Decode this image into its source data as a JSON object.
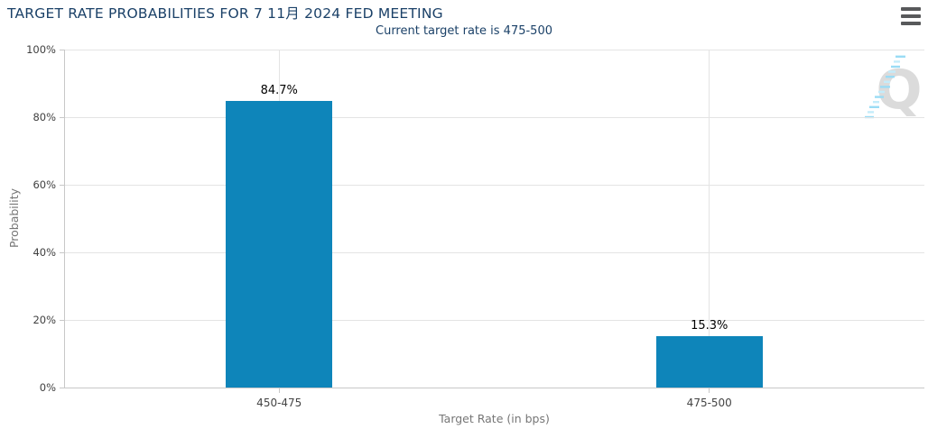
{
  "header": {
    "title": "TARGET RATE PROBABILITIES FOR 7 11月 2024 FED MEETING",
    "menu_icon": "hamburger-icon"
  },
  "subtitle": "Current target rate is 475-500",
  "watermark": {
    "icon": "q-logo",
    "letter": "Q"
  },
  "chart_data": {
    "type": "bar",
    "title": "TARGET RATE PROBABILITIES FOR 7 11月 2024 FED MEETING",
    "subtitle": "Current target rate is 475-500",
    "categories": [
      "450-475",
      "475-500"
    ],
    "values": [
      84.7,
      15.3
    ],
    "value_labels": [
      "84.7%",
      "15.3%"
    ],
    "xlabel": "Target Rate (in bps)",
    "ylabel": "Probability",
    "ylim": [
      0,
      100
    ],
    "ytick_step": 20,
    "ytick_labels": [
      "0%",
      "20%",
      "40%",
      "60%",
      "80%",
      "100%"
    ],
    "grid": true,
    "legend": "none"
  },
  "colors": {
    "title": "#1b4168",
    "subtitle": "#1b4168",
    "bar": "#0e85ba",
    "gridline": "#e4e4e4",
    "axis_line": "#c8c8c8",
    "tick_label": "#404040",
    "category_label": "#444444",
    "axis_title": "#767676",
    "value_label": "#000000",
    "menu_icon": "#58595b",
    "watermark_q": "#dbdbdb",
    "watermark_stripes": "#9adcf5"
  }
}
